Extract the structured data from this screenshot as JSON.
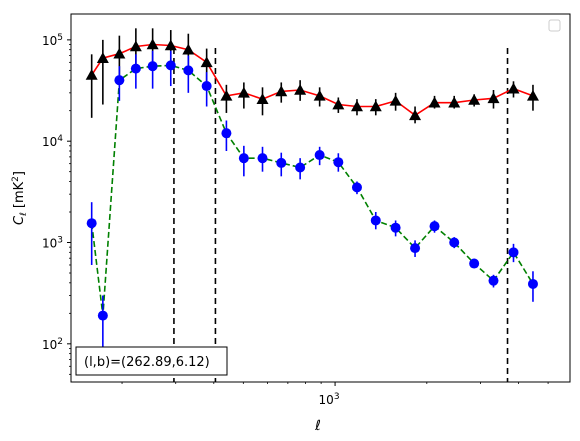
{
  "chart_data": {
    "type": "scatter",
    "title": "",
    "xlabel": "ℓ",
    "ylabel_main": "C",
    "ylabel_sub": "ℓ",
    "ylabel_unit_pre": " [mK",
    "ylabel_unit_sup": "2",
    "ylabel_unit_post": "]",
    "xscale": "log",
    "yscale": "log",
    "xlim": [
      136,
      5900
    ],
    "ylim": [
      42,
      180000
    ],
    "grid": false,
    "legend": "top-right",
    "x_ticks": [
      {
        "value": 1000,
        "base": "10",
        "exp": "3"
      }
    ],
    "y_ticks": [
      {
        "value": 100,
        "base": "10",
        "exp": "2"
      },
      {
        "value": 1000,
        "base": "10",
        "exp": "3"
      },
      {
        "value": 10000,
        "base": "10",
        "exp": "4"
      },
      {
        "value": 100000,
        "base": "10",
        "exp": "5"
      }
    ],
    "vlines": [
      296,
      405,
      3680
    ],
    "annotation": "(l,b)=(262.89,6.12)",
    "series": [
      {
        "marker": "triangle",
        "color": "#000000",
        "line_color": "#ff0000",
        "line_style": "solid",
        "points": [
          {
            "x": 159,
            "y": 45000,
            "lo": 17000,
            "hi": 72000
          },
          {
            "x": 173,
            "y": 66000,
            "lo": 23000,
            "hi": 100000
          },
          {
            "x": 196,
            "y": 73000,
            "lo": 37000,
            "hi": 110000
          },
          {
            "x": 222,
            "y": 86000,
            "lo": 50000,
            "hi": 130000
          },
          {
            "x": 252,
            "y": 90000,
            "lo": 55000,
            "hi": 130000
          },
          {
            "x": 289,
            "y": 88000,
            "lo": 55000,
            "hi": 125000
          },
          {
            "x": 330,
            "y": 80000,
            "lo": 48000,
            "hi": 115000
          },
          {
            "x": 379,
            "y": 60000,
            "lo": 35000,
            "hi": 82000
          },
          {
            "x": 440,
            "y": 28000,
            "lo": 19000,
            "hi": 36000
          },
          {
            "x": 502,
            "y": 30000,
            "lo": 21000,
            "hi": 38000
          },
          {
            "x": 578,
            "y": 26000,
            "lo": 18000,
            "hi": 34000
          },
          {
            "x": 666,
            "y": 31000,
            "lo": 24000,
            "hi": 38000
          },
          {
            "x": 768,
            "y": 32000,
            "lo": 25000,
            "hi": 40000
          },
          {
            "x": 890,
            "y": 28000,
            "lo": 22000,
            "hi": 34000
          },
          {
            "x": 1025,
            "y": 23000,
            "lo": 19000,
            "hi": 27000
          },
          {
            "x": 1180,
            "y": 22000,
            "lo": 18000,
            "hi": 26000
          },
          {
            "x": 1360,
            "y": 22000,
            "lo": 18000,
            "hi": 26000
          },
          {
            "x": 1580,
            "y": 25000,
            "lo": 20000,
            "hi": 30000
          },
          {
            "x": 1830,
            "y": 18000,
            "lo": 15000,
            "hi": 22000
          },
          {
            "x": 2120,
            "y": 24000,
            "lo": 21000,
            "hi": 28000
          },
          {
            "x": 2460,
            "y": 24000,
            "lo": 21000,
            "hi": 28000
          },
          {
            "x": 2860,
            "y": 25500,
            "lo": 22000,
            "hi": 29000
          },
          {
            "x": 3310,
            "y": 26500,
            "lo": 21000,
            "hi": 32000
          },
          {
            "x": 3850,
            "y": 33000,
            "lo": 27000,
            "hi": 39000
          },
          {
            "x": 4460,
            "y": 28000,
            "lo": 20000,
            "hi": 36000
          }
        ]
      },
      {
        "marker": "circle",
        "color": "#0000ff",
        "line_color": "#008000",
        "line_style": "dashed",
        "points": [
          {
            "x": 159,
            "y": 1550,
            "lo": 600,
            "hi": 2500
          },
          {
            "x": 173,
            "y": 190,
            "lo": 90,
            "hi": 300
          },
          {
            "x": 196,
            "y": 40000,
            "lo": 25000,
            "hi": 55000
          },
          {
            "x": 222,
            "y": 52000,
            "lo": 33000,
            "hi": 72000
          },
          {
            "x": 252,
            "y": 55000,
            "lo": 33000,
            "hi": 78000
          },
          {
            "x": 289,
            "y": 56000,
            "lo": 35000,
            "hi": 78000
          },
          {
            "x": 330,
            "y": 50000,
            "lo": 30000,
            "hi": 70000
          },
          {
            "x": 379,
            "y": 35000,
            "lo": 22000,
            "hi": 48000
          },
          {
            "x": 440,
            "y": 12000,
            "lo": 8000,
            "hi": 16000
          },
          {
            "x": 502,
            "y": 6800,
            "lo": 4500,
            "hi": 9000
          },
          {
            "x": 578,
            "y": 6800,
            "lo": 5000,
            "hi": 8800
          },
          {
            "x": 666,
            "y": 6100,
            "lo": 4500,
            "hi": 7700
          },
          {
            "x": 768,
            "y": 5500,
            "lo": 4200,
            "hi": 6800
          },
          {
            "x": 890,
            "y": 7300,
            "lo": 5800,
            "hi": 8800
          },
          {
            "x": 1025,
            "y": 6200,
            "lo": 5000,
            "hi": 7600
          },
          {
            "x": 1180,
            "y": 3500,
            "lo": 3000,
            "hi": 4000
          },
          {
            "x": 1360,
            "y": 1650,
            "lo": 1350,
            "hi": 2000
          },
          {
            "x": 1580,
            "y": 1400,
            "lo": 1150,
            "hi": 1650
          },
          {
            "x": 1830,
            "y": 880,
            "lo": 720,
            "hi": 1050
          },
          {
            "x": 2120,
            "y": 1450,
            "lo": 1250,
            "hi": 1650
          },
          {
            "x": 2460,
            "y": 1000,
            "lo": 880,
            "hi": 1130
          },
          {
            "x": 2860,
            "y": 620,
            "lo": 560,
            "hi": 690
          },
          {
            "x": 3310,
            "y": 420,
            "lo": 360,
            "hi": 480
          },
          {
            "x": 3850,
            "y": 800,
            "lo": 640,
            "hi": 970
          },
          {
            "x": 4460,
            "y": 390,
            "lo": 260,
            "hi": 520
          }
        ]
      }
    ]
  }
}
